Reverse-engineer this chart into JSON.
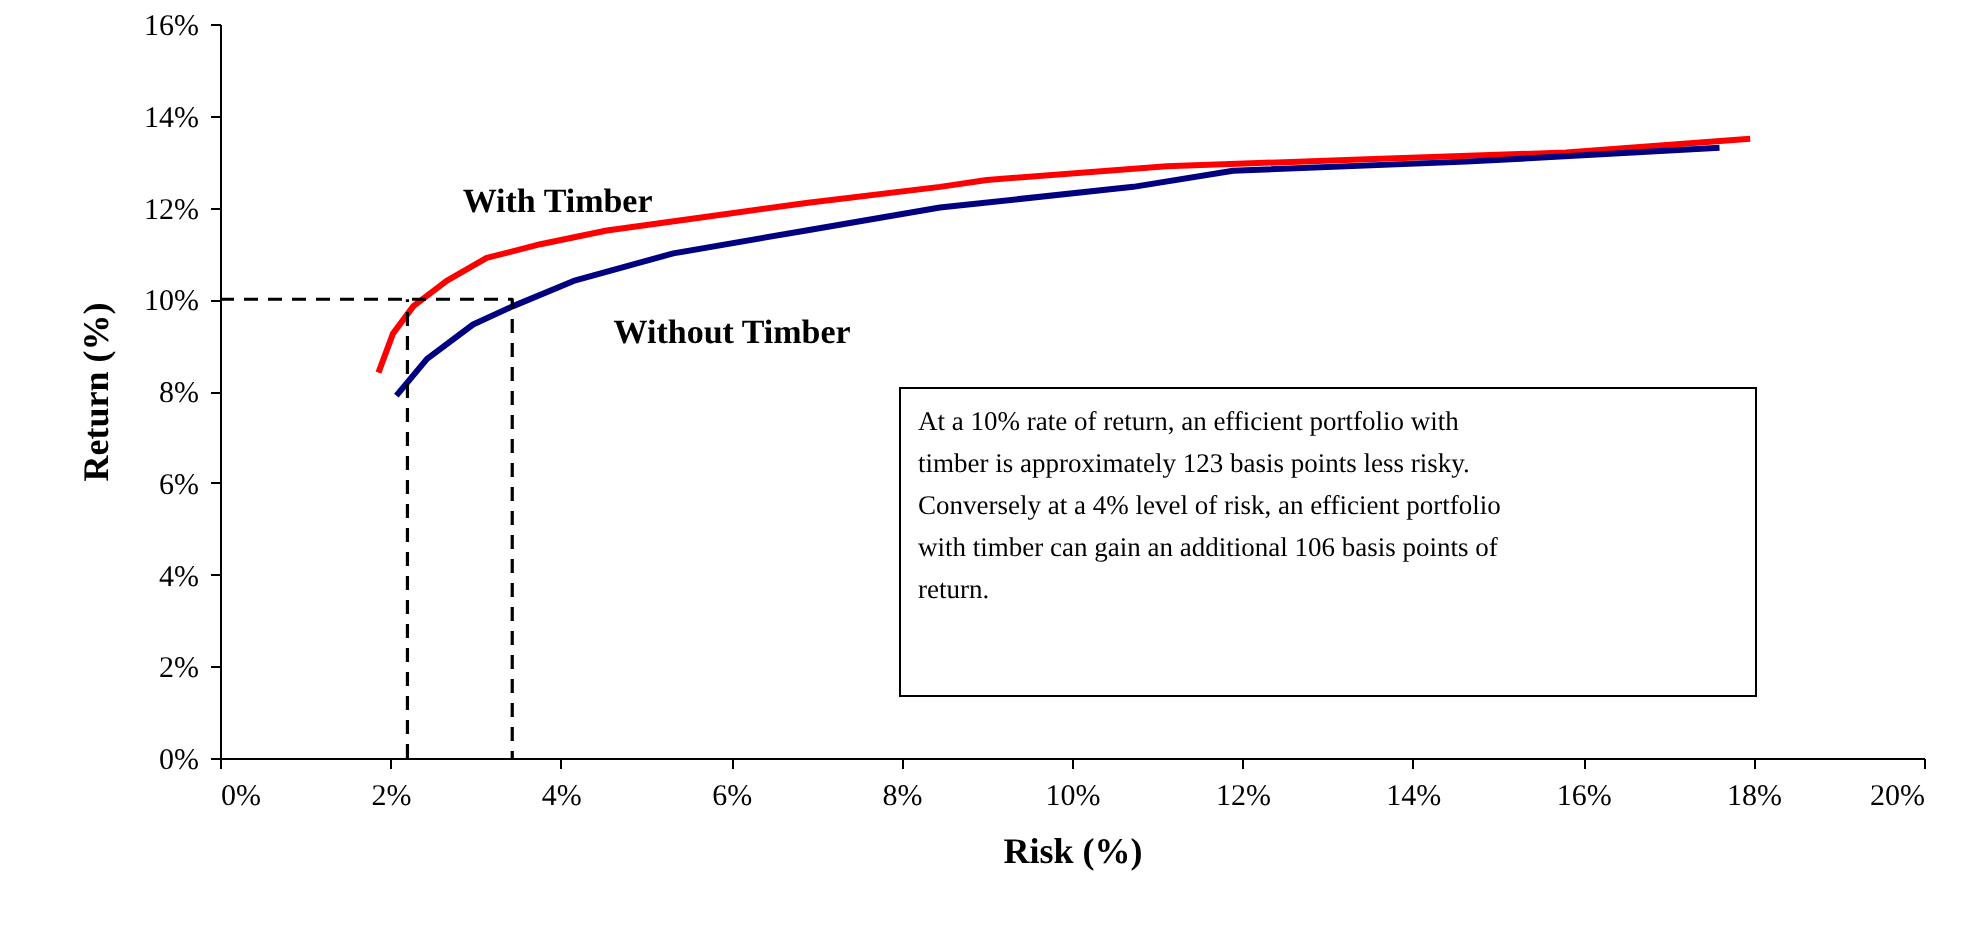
{
  "chart_data": {
    "type": "line",
    "xlabel": "Risk (%)",
    "ylabel": "Return (%)",
    "xlim": [
      0,
      20
    ],
    "ylim": [
      0,
      16
    ],
    "xticks": [
      {
        "value": 0,
        "label": "0%"
      },
      {
        "value": 2,
        "label": "2%"
      },
      {
        "value": 4,
        "label": "4%"
      },
      {
        "value": 6,
        "label": "6%"
      },
      {
        "value": 8,
        "label": "8%"
      },
      {
        "value": 10,
        "label": "10%"
      },
      {
        "value": 12,
        "label": "12%"
      },
      {
        "value": 14,
        "label": "14%"
      },
      {
        "value": 16,
        "label": "16%"
      },
      {
        "value": 18,
        "label": "18%"
      },
      {
        "value": 20,
        "label": "20%"
      }
    ],
    "yticks": [
      {
        "value": 0,
        "label": "0%"
      },
      {
        "value": 2,
        "label": "2%"
      },
      {
        "value": 4,
        "label": "4%"
      },
      {
        "value": 6,
        "label": "6%"
      },
      {
        "value": 8,
        "label": "8%"
      },
      {
        "value": 10,
        "label": "10%"
      },
      {
        "value": 12,
        "label": "12%"
      },
      {
        "value": 14,
        "label": "14%"
      },
      {
        "value": 16,
        "label": "16%"
      }
    ],
    "grid": false,
    "legend": false,
    "marker": "none",
    "series": [
      {
        "name": "With Timber",
        "color": "#ff0000",
        "x": [
          1.86,
          2.03,
          2.27,
          2.66,
          3.13,
          3.76,
          4.54,
          5.71,
          6.88,
          8.45,
          9.0,
          11.11,
          13.46,
          15.8,
          17.96
        ],
        "values": [
          8.4,
          9.25,
          9.85,
          10.4,
          10.9,
          11.2,
          11.5,
          11.8,
          12.1,
          12.45,
          12.6,
          12.9,
          13.05,
          13.2,
          13.5
        ]
      },
      {
        "name": "Without Timber",
        "color": "#000080",
        "x": [
          2.07,
          2.43,
          2.97,
          3.44,
          4.15,
          5.32,
          6.88,
          8.45,
          10.72,
          11.89,
          14.63,
          17.6
        ],
        "values": [
          7.9,
          8.7,
          9.45,
          9.85,
          10.4,
          11.0,
          11.5,
          12.0,
          12.45,
          12.8,
          13.0,
          13.3
        ]
      },
      {
        "type": "line",
        "color": "#000000",
        "line_style": "dashed",
        "x": [
          0,
          3.43,
          3.43
        ],
        "values": [
          10,
          10,
          0
        ]
      },
      {
        "type": "line",
        "color": "#000000",
        "line_style": "dashed",
        "x": [
          2.2,
          2.2
        ],
        "values": [
          0,
          10
        ]
      }
    ],
    "annotations": [
      "At a 10% rate of return, an efficient portfolio with timber is approximately 123 basis points less risky.",
      "Conversely at a 4% level of risk, an efficient portfolio with timber can gain an additional 106 basis points of return."
    ]
  }
}
